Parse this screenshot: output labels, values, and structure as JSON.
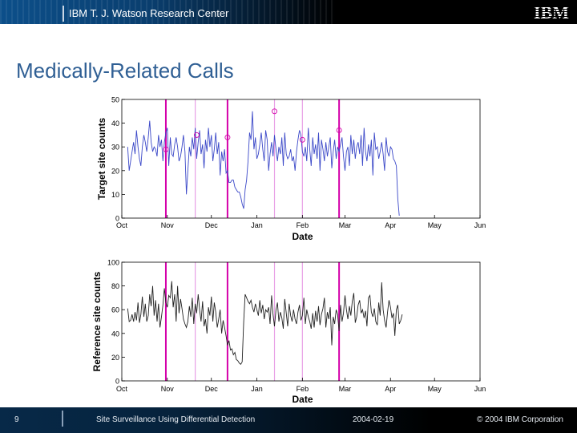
{
  "header": {
    "title": "IBM T. J. Watson Research Center",
    "logo": "IBM"
  },
  "slide": {
    "title": "Medically-Related Calls"
  },
  "footer": {
    "page": "9",
    "left_text": "Site Surveillance Using Differential Detection",
    "date": "2004-02-19",
    "copyright": "© 2004 IBM Corporation"
  },
  "colors": {
    "target_line": "#3b48c8",
    "reference_line": "#222222",
    "marker_strong": "#d400aa",
    "marker_light": "#e8a0e6",
    "title_blue": "#2f5f94"
  },
  "chart_data": [
    {
      "type": "line",
      "xlabel": "Date",
      "ylabel": "Target site counts",
      "x_ticks": [
        "Oct",
        "Nov",
        "Dec",
        "Jan",
        "Feb",
        "Mar",
        "Apr",
        "May",
        "Jun"
      ],
      "x_range": [
        "2003-10-01",
        "2004-06-01"
      ],
      "ylim": [
        0,
        50
      ],
      "y_ticks": [
        0,
        10,
        20,
        30,
        40,
        50
      ],
      "grid": false,
      "series": [
        {
          "x_start": "2003-10-05",
          "step_days": 1,
          "values": [
            30,
            20,
            24,
            28,
            32,
            27,
            37,
            30,
            25,
            22,
            30,
            35,
            32,
            28,
            34,
            41,
            32,
            28,
            30,
            29,
            26,
            35,
            30,
            33,
            24,
            32,
            36,
            38,
            22,
            34,
            27,
            26,
            31,
            34,
            30,
            24,
            26,
            30,
            35,
            28,
            10,
            20,
            30,
            26,
            34,
            29,
            38,
            25,
            32,
            37,
            27,
            31,
            21,
            33,
            28,
            38,
            30,
            35,
            24,
            29,
            36,
            27,
            32,
            18,
            28,
            24,
            29,
            19,
            20,
            15,
            15,
            16,
            16,
            13,
            12,
            11,
            11,
            9,
            6,
            4,
            12,
            16,
            24,
            36,
            33,
            45,
            29,
            34,
            25,
            27,
            31,
            36,
            29,
            24,
            37,
            33,
            20,
            27,
            32,
            26,
            35,
            29,
            24,
            30,
            27,
            34,
            22,
            36,
            27,
            25,
            26,
            29,
            24,
            26,
            20,
            28,
            33,
            37,
            35,
            28,
            26,
            30,
            24,
            38,
            29,
            22,
            34,
            27,
            31,
            25,
            36,
            20,
            33,
            29,
            24,
            32,
            26,
            30,
            34,
            21,
            28,
            33,
            25,
            30,
            28,
            31,
            34,
            26,
            20,
            28,
            30,
            22,
            35,
            27,
            33,
            25,
            30,
            32,
            27,
            35,
            22,
            38,
            28,
            24,
            31,
            26,
            33,
            18,
            36,
            29,
            30,
            25,
            28,
            32,
            27,
            20,
            34,
            28,
            26,
            30,
            29,
            25,
            24,
            22,
            8,
            1
          ]
        }
      ],
      "outliers": [
        {
          "x": "2003-10-31",
          "y": 29
        },
        {
          "x": "2003-11-21",
          "y": 35
        },
        {
          "x": "2003-12-12",
          "y": 34
        },
        {
          "x": "2004-01-13",
          "y": 45
        },
        {
          "x": "2004-02-01",
          "y": 33
        },
        {
          "x": "2004-02-26",
          "y": 37
        }
      ]
    },
    {
      "type": "line",
      "xlabel": "Date",
      "ylabel": "Reference site counts",
      "x_ticks": [
        "Oct",
        "Nov",
        "Dec",
        "Jan",
        "Feb",
        "Mar",
        "Apr",
        "May",
        "Jun"
      ],
      "x_range": [
        "2003-10-01",
        "2004-06-01"
      ],
      "ylim": [
        0,
        100
      ],
      "y_ticks": [
        0,
        20,
        40,
        60,
        80,
        100
      ],
      "grid": false,
      "series": [
        {
          "x_start": "2003-10-05",
          "step_days": 1,
          "values": [
            61,
            50,
            51,
            56,
            50,
            58,
            51,
            66,
            49,
            56,
            71,
            54,
            65,
            50,
            55,
            73,
            63,
            80,
            55,
            68,
            50,
            65,
            45,
            54,
            64,
            78,
            66,
            62,
            72,
            70,
            84,
            62,
            73,
            50,
            80,
            57,
            69,
            61,
            52,
            48,
            45,
            50,
            63,
            54,
            70,
            48,
            65,
            57,
            73,
            60,
            50,
            67,
            46,
            52,
            40,
            62,
            55,
            71,
            50,
            66,
            58,
            45,
            52,
            60,
            40,
            51,
            45,
            38,
            30,
            34,
            26,
            27,
            22,
            24,
            18,
            17,
            15,
            14,
            16,
            50,
            73,
            70,
            67,
            65,
            68,
            62,
            58,
            65,
            60,
            55,
            68,
            57,
            64,
            52,
            60,
            58,
            62,
            48,
            72,
            56,
            46,
            60,
            66,
            50,
            58,
            53,
            44,
            69,
            57,
            46,
            65,
            55,
            50,
            60,
            52,
            48,
            58,
            64,
            51,
            55,
            70,
            48,
            60,
            54,
            50,
            44,
            57,
            45,
            59,
            50,
            63,
            47,
            56,
            61,
            70,
            45,
            58,
            52,
            62,
            30,
            54,
            48,
            60,
            56,
            42,
            64,
            50,
            57,
            72,
            60,
            52,
            63,
            55,
            67,
            74,
            49,
            54,
            64,
            68,
            57,
            60,
            53,
            59,
            46,
            70,
            72,
            58,
            54,
            61,
            50,
            47,
            66,
            55,
            83,
            60,
            51,
            45,
            58,
            68,
            62,
            53,
            57,
            38,
            60,
            64,
            48,
            51,
            56
          ]
        }
      ]
    }
  ],
  "event_lines": {
    "strong": [
      "2003-10-31",
      "2003-12-12",
      "2004-02-26"
    ],
    "light": [
      "2003-11-20",
      "2004-01-13",
      "2004-02-01"
    ]
  }
}
